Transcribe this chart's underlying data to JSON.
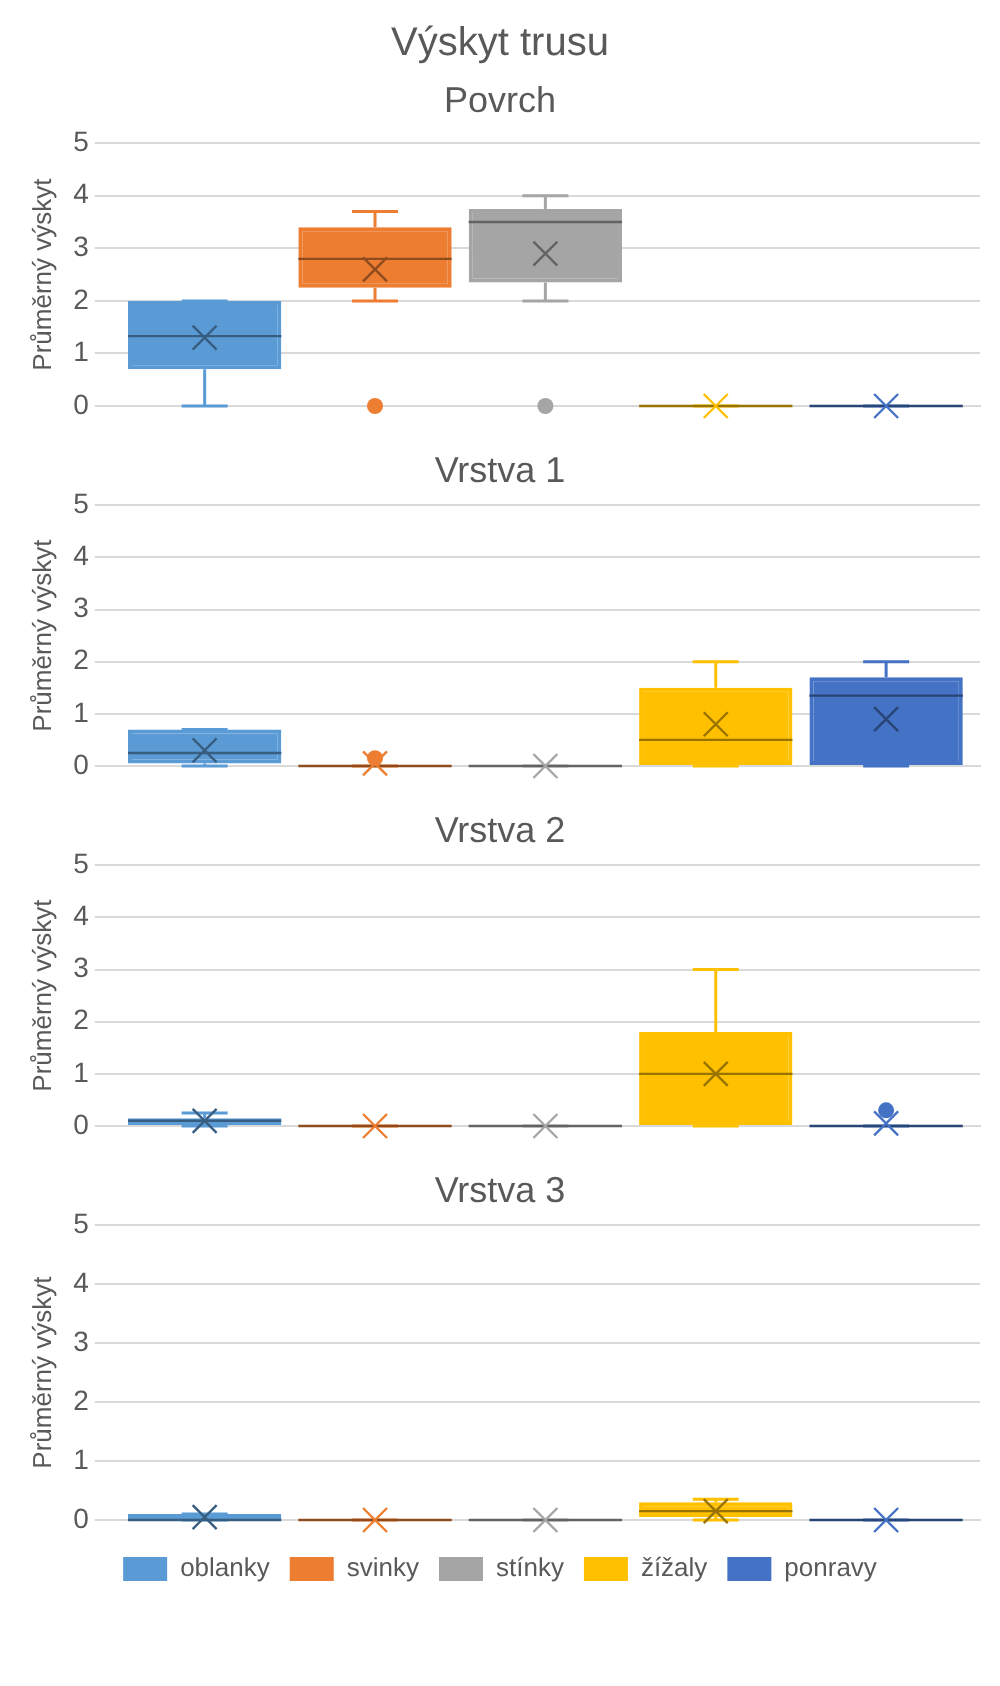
{
  "chart_data": [
    {
      "type": "box",
      "title": "Výskyt trusu",
      "subtitle": "Povrch",
      "ylabel": "Průměrný výskyt",
      "categories": [
        null
      ],
      "ylim": [
        0,
        5
      ],
      "yticks": [
        0,
        1,
        2,
        3,
        4,
        5
      ],
      "grid": "y",
      "tick_labels": "y",
      "series": [
        {
          "color": "#5b9bd5",
          "boxes": [
            {
              "low": 0,
              "q1": 0.7,
              "median": 1.33,
              "q3": 2,
              "high": 2,
              "mean": 1.3
            }
          ]
        },
        {
          "color": "#ed7d31",
          "boxes": [
            {
              "low": 2,
              "q1": 2.25,
              "median": 2.8,
              "q3": 3.4,
              "high": 3.7,
              "mean": 2.6,
              "outliers": [
                0
              ]
            }
          ]
        },
        {
          "color": "#a5a5a5",
          "boxes": [
            {
              "low": 2,
              "q1": 2.35,
              "median": 3.5,
              "q3": 3.75,
              "high": 4,
              "mean": 2.9,
              "outliers": [
                0
              ]
            }
          ]
        },
        {
          "color": "#ffc000",
          "boxes": [
            {
              "low": 0,
              "q1": 0,
              "median": 0,
              "q3": 0,
              "high": 0,
              "mean": 0
            }
          ]
        },
        {
          "color": "#4472c4",
          "boxes": [
            {
              "low": 0,
              "q1": 0,
              "median": 0,
              "q3": 0,
              "high": 0,
              "mean": 0
            }
          ]
        }
      ]
    },
    {
      "type": "box",
      "title": "Vrstva 1",
      "ylabel": "Průměrný výskyt",
      "categories": [
        null
      ],
      "ylim": [
        0,
        5
      ],
      "yticks": [
        0,
        1,
        2,
        3,
        4,
        5
      ],
      "grid": "y",
      "tick_labels": "y",
      "series": [
        {
          "color": "#5b9bd5",
          "boxes": [
            {
              "low": 0,
              "q1": 0.05,
              "median": 0.25,
              "q3": 0.7,
              "high": 0.7,
              "mean": 0.3
            }
          ]
        },
        {
          "color": "#ed7d31",
          "boxes": [
            {
              "low": 0,
              "q1": 0,
              "median": 0,
              "q3": 0,
              "high": 0,
              "mean": 0.05,
              "outliers": [
                0.15
              ]
            }
          ]
        },
        {
          "color": "#a5a5a5",
          "boxes": [
            {
              "low": 0,
              "q1": 0,
              "median": 0,
              "q3": 0,
              "high": 0,
              "mean": 0
            }
          ]
        },
        {
          "color": "#ffc000",
          "boxes": [
            {
              "low": 0,
              "q1": 0,
              "median": 0.5,
              "q3": 1.5,
              "high": 2,
              "mean": 0.8
            }
          ]
        },
        {
          "color": "#4472c4",
          "boxes": [
            {
              "low": 0,
              "q1": 0,
              "median": 1.35,
              "q3": 1.7,
              "high": 2,
              "mean": 0.9
            }
          ]
        }
      ]
    },
    {
      "type": "box",
      "title": "Vrstva 2",
      "ylabel": "Průměrný výskyt",
      "categories": [
        null
      ],
      "ylim": [
        0,
        5
      ],
      "yticks": [
        0,
        1,
        2,
        3,
        4,
        5
      ],
      "grid": "y",
      "tick_labels": "y",
      "series": [
        {
          "color": "#5b9bd5",
          "boxes": [
            {
              "low": 0,
              "q1": 0,
              "median": 0.1,
              "q3": 0.15,
              "high": 0.25,
              "mean": 0.1
            }
          ]
        },
        {
          "color": "#ed7d31",
          "boxes": [
            {
              "low": 0,
              "q1": 0,
              "median": 0,
              "q3": 0,
              "high": 0,
              "mean": 0
            }
          ]
        },
        {
          "color": "#a5a5a5",
          "boxes": [
            {
              "low": 0,
              "q1": 0,
              "median": 0,
              "q3": 0,
              "high": 0,
              "mean": 0
            }
          ]
        },
        {
          "color": "#ffc000",
          "boxes": [
            {
              "low": 0,
              "q1": 0,
              "median": 1,
              "q3": 1.8,
              "high": 3,
              "mean": 1
            }
          ]
        },
        {
          "color": "#4472c4",
          "boxes": [
            {
              "low": 0,
              "q1": 0,
              "median": 0,
              "q3": 0,
              "high": 0,
              "mean": 0.05,
              "outliers": [
                0.3
              ]
            }
          ]
        }
      ]
    },
    {
      "type": "box",
      "title": "Vrstva 3",
      "ylabel": "Průměrný výskyt",
      "categories": [
        null
      ],
      "ylim": [
        0,
        5
      ],
      "yticks": [
        0,
        1,
        2,
        3,
        4,
        5
      ],
      "grid": "y",
      "tick_labels": "y",
      "legend": "bottom",
      "series": [
        {
          "name": "oblanky",
          "color": "#5b9bd5",
          "boxes": [
            {
              "low": 0,
              "q1": 0,
              "median": 0,
              "q3": 0.1,
              "high": 0.1,
              "mean": 0.05
            }
          ]
        },
        {
          "name": "svinky",
          "color": "#ed7d31",
          "boxes": [
            {
              "low": 0,
              "q1": 0,
              "median": 0,
              "q3": 0,
              "high": 0,
              "mean": 0
            }
          ]
        },
        {
          "name": "stínky",
          "color": "#a5a5a5",
          "boxes": [
            {
              "low": 0,
              "q1": 0,
              "median": 0,
              "q3": 0,
              "high": 0,
              "mean": 0
            }
          ]
        },
        {
          "name": "žížaly",
          "color": "#ffc000",
          "boxes": [
            {
              "low": 0,
              "q1": 0.05,
              "median": 0.15,
              "q3": 0.3,
              "high": 0.35,
              "mean": 0.15
            }
          ]
        },
        {
          "name": "ponravy",
          "color": "#4472c4",
          "boxes": [
            {
              "low": 0,
              "q1": 0,
              "median": 0,
              "q3": 0,
              "high": 0,
              "mean": 0
            }
          ]
        }
      ]
    }
  ]
}
